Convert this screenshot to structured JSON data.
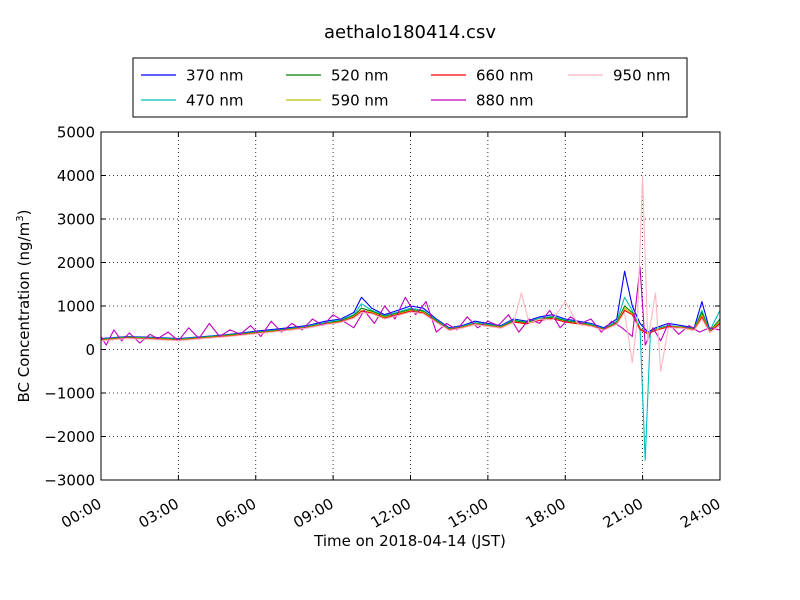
{
  "chart_data": {
    "type": "line",
    "title": "aethalo180414.csv",
    "xlabel": "Time on 2018-04-14 (JST)",
    "ylabel": "BC Concentration (ng/m",
    "ylabel_sup": "3",
    "ylabel_close": ")",
    "xlim": [
      0,
      24
    ],
    "ylim": [
      -3000,
      5000
    ],
    "grid": true,
    "legend_position": "top-center",
    "x_ticks": [
      0,
      3,
      6,
      9,
      12,
      15,
      18,
      21,
      24
    ],
    "x_tick_labels": [
      "00:00",
      "03:00",
      "06:00",
      "09:00",
      "12:00",
      "15:00",
      "18:00",
      "21:00",
      "24:00"
    ],
    "y_ticks": [
      -3000,
      -2000,
      -1000,
      0,
      1000,
      2000,
      3000,
      4000,
      5000
    ],
    "y_tick_labels": [
      "−3000",
      "−2000",
      "−1000",
      "0",
      "1000",
      "2000",
      "3000",
      "4000",
      "5000"
    ],
    "series": [
      {
        "name": "370 nm",
        "color": "#0000ff",
        "x": [
          0,
          1,
          2,
          3,
          4,
          5,
          6,
          7,
          8,
          8.7,
          9.3,
          9.8,
          10.1,
          10.5,
          11,
          11.5,
          12,
          12.5,
          13,
          13.5,
          14,
          14.5,
          15,
          15.5,
          16,
          16.5,
          17,
          17.5,
          18,
          18.5,
          19,
          19.5,
          20,
          20.3,
          20.6,
          20.9,
          21.2,
          21.5,
          22,
          22.5,
          23,
          23.3,
          23.6,
          24
        ],
        "y": [
          250,
          300,
          280,
          250,
          300,
          350,
          420,
          480,
          550,
          650,
          700,
          850,
          1200,
          950,
          800,
          900,
          1000,
          950,
          700,
          500,
          550,
          650,
          600,
          550,
          700,
          650,
          750,
          800,
          700,
          650,
          600,
          500,
          700,
          1800,
          1000,
          600,
          400,
          500,
          600,
          550,
          500,
          1100,
          450,
          600
        ]
      },
      {
        "name": "470 nm",
        "color": "#00bfbf",
        "x": [
          0,
          1,
          2,
          3,
          4,
          5,
          6,
          7,
          8,
          8.7,
          9.3,
          9.8,
          10.1,
          10.5,
          11,
          11.5,
          12,
          12.5,
          13,
          13.5,
          14,
          14.5,
          15,
          15.5,
          16,
          16.5,
          17,
          17.5,
          18,
          18.5,
          19,
          19.5,
          20,
          20.3,
          20.6,
          20.9,
          21.1,
          21.3,
          21.6,
          22,
          22.5,
          23,
          23.3,
          23.6,
          24
        ],
        "y": [
          240,
          290,
          270,
          240,
          290,
          340,
          400,
          460,
          530,
          620,
          680,
          800,
          1050,
          900,
          780,
          860,
          950,
          900,
          680,
          480,
          530,
          620,
          580,
          530,
          680,
          630,
          720,
          760,
          680,
          630,
          580,
          480,
          650,
          1200,
          900,
          500,
          -2550,
          400,
          500,
          550,
          520,
          480,
          900,
          430,
          900
        ]
      },
      {
        "name": "520 nm",
        "color": "#008000",
        "x": [
          0,
          1,
          2,
          3,
          4,
          5,
          6,
          7,
          8,
          8.7,
          9.3,
          9.8,
          10.1,
          10.5,
          11,
          11.5,
          12,
          12.5,
          13,
          13.5,
          14,
          14.5,
          15,
          15.5,
          16,
          16.5,
          17,
          17.5,
          18,
          18.5,
          19,
          19.5,
          20,
          20.3,
          20.6,
          20.9,
          21.2,
          21.5,
          22,
          22.5,
          23,
          23.3,
          23.6,
          24
        ],
        "y": [
          230,
          280,
          260,
          230,
          280,
          330,
          390,
          450,
          520,
          600,
          660,
          780,
          950,
          880,
          760,
          840,
          920,
          880,
          660,
          470,
          520,
          600,
          560,
          520,
          660,
          620,
          700,
          740,
          660,
          620,
          560,
          470,
          620,
          1000,
          850,
          480,
          380,
          460,
          540,
          520,
          470,
          850,
          420,
          700
        ]
      },
      {
        "name": "590 nm",
        "color": "#bfbf00",
        "x": [
          0,
          1,
          2,
          3,
          4,
          5,
          6,
          7,
          8,
          8.7,
          9.3,
          9.8,
          10.1,
          10.5,
          11,
          11.5,
          12,
          12.5,
          13,
          13.5,
          14,
          14.5,
          15,
          15.5,
          16,
          16.5,
          17,
          17.5,
          18,
          18.5,
          19,
          19.5,
          20,
          20.3,
          20.6,
          20.9,
          21.2,
          21.5,
          22,
          22.5,
          23,
          23.3,
          23.6,
          24
        ],
        "y": [
          220,
          270,
          250,
          220,
          270,
          320,
          380,
          440,
          510,
          590,
          640,
          760,
          900,
          860,
          740,
          820,
          900,
          860,
          640,
          460,
          510,
          590,
          550,
          510,
          640,
          600,
          680,
          720,
          640,
          600,
          550,
          460,
          600,
          950,
          820,
          470,
          370,
          450,
          530,
          510,
          460,
          800,
          410,
          650
        ]
      },
      {
        "name": "660 nm",
        "color": "#ff0000",
        "x": [
          0,
          1,
          2,
          3,
          4,
          5,
          6,
          7,
          8,
          8.7,
          9.3,
          9.8,
          10.1,
          10.5,
          11,
          11.5,
          12,
          12.5,
          13,
          13.5,
          14,
          14.5,
          15,
          15.5,
          16,
          16.5,
          17,
          17.5,
          18,
          18.5,
          19,
          19.5,
          20,
          20.3,
          20.6,
          20.9,
          21.2,
          21.5,
          22,
          22.5,
          23,
          23.3,
          23.6,
          24
        ],
        "y": [
          210,
          260,
          240,
          210,
          260,
          310,
          370,
          430,
          500,
          580,
          630,
          740,
          880,
          840,
          720,
          800,
          880,
          840,
          630,
          450,
          500,
          580,
          540,
          500,
          630,
          590,
          670,
          710,
          630,
          590,
          540,
          450,
          590,
          900,
          800,
          460,
          360,
          440,
          520,
          500,
          450,
          750,
          400,
          600
        ]
      },
      {
        "name": "880 nm",
        "color": "#bf00bf",
        "x": [
          0,
          0.2,
          0.5,
          0.8,
          1.1,
          1.5,
          1.9,
          2.2,
          2.6,
          3,
          3.4,
          3.8,
          4.2,
          4.6,
          5,
          5.4,
          5.8,
          6.2,
          6.6,
          7,
          7.4,
          7.8,
          8.2,
          8.6,
          9,
          9.4,
          9.8,
          10.2,
          10.6,
          11,
          11.4,
          11.8,
          12.2,
          12.6,
          13,
          13.4,
          13.8,
          14.2,
          14.6,
          15,
          15.4,
          15.8,
          16.2,
          16.6,
          17,
          17.4,
          17.8,
          18.2,
          18.6,
          19,
          19.4,
          19.8,
          20.2,
          20.6,
          20.9,
          21.1,
          21.4,
          21.7,
          22,
          22.4,
          22.8,
          23.2,
          23.6,
          24
        ],
        "y": [
          300,
          100,
          450,
          200,
          380,
          150,
          350,
          250,
          400,
          200,
          500,
          250,
          600,
          300,
          450,
          350,
          550,
          300,
          650,
          400,
          600,
          450,
          700,
          550,
          800,
          650,
          500,
          900,
          600,
          1000,
          700,
          1200,
          800,
          1100,
          400,
          600,
          450,
          750,
          500,
          650,
          550,
          800,
          400,
          700,
          600,
          900,
          500,
          750,
          600,
          700,
          400,
          650,
          500,
          300,
          1900,
          100,
          500,
          200,
          600,
          350,
          550,
          400,
          500,
          450
        ]
      },
      {
        "name": "950 nm",
        "color": "#ffb6c1",
        "x": [
          0,
          1,
          2,
          3,
          4,
          5,
          6,
          7,
          8,
          8.7,
          9.3,
          9.8,
          10.1,
          10.5,
          11,
          11.5,
          12,
          12.5,
          13,
          13.5,
          14,
          14.5,
          15,
          15.5,
          16,
          16.3,
          16.6,
          17,
          17.5,
          18,
          18.5,
          19,
          19.5,
          20,
          20.3,
          20.6,
          20.8,
          21,
          21.2,
          21.5,
          21.7,
          22,
          22.5,
          23,
          23.3,
          23.6,
          24
        ],
        "y": [
          200,
          250,
          230,
          200,
          250,
          300,
          360,
          420,
          490,
          570,
          620,
          720,
          850,
          820,
          700,
          780,
          860,
          820,
          620,
          440,
          490,
          570,
          530,
          490,
          620,
          1300,
          600,
          700,
          680,
          1100,
          580,
          530,
          440,
          580,
          850,
          -300,
          700,
          4000,
          200,
          1300,
          -500,
          500,
          490,
          440,
          700,
          390,
          550
        ]
      }
    ]
  }
}
